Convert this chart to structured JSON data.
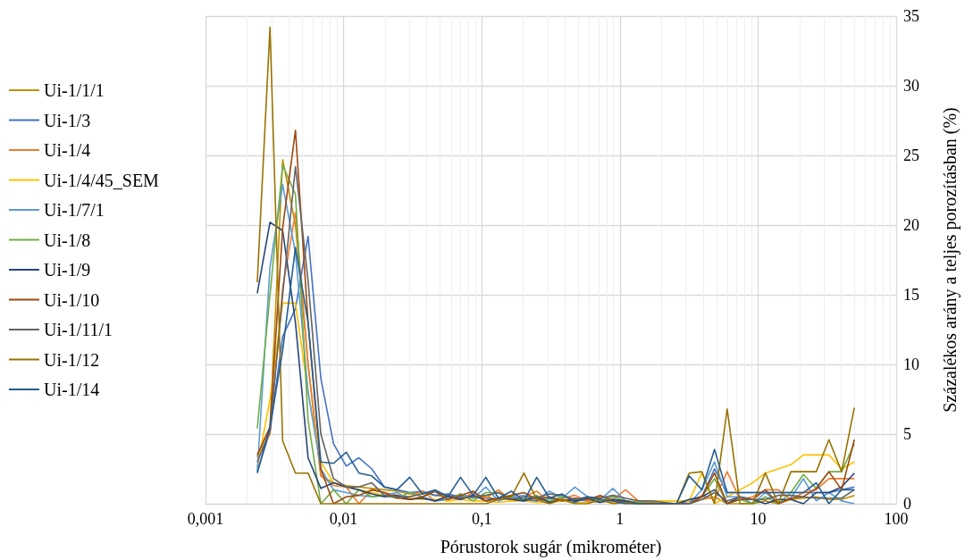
{
  "chart_data": {
    "type": "line",
    "xlabel": "Pórustorok sugár (mikrométer)",
    "ylabel": "Százalékos arány a teljes porozításban (%)",
    "log": "x",
    "grid": true,
    "legend": "left",
    "marker": "none",
    "line_style": "solid",
    "xlim": [
      0.001,
      100
    ],
    "xticks": [
      {
        "value": 0.001,
        "label": "0,001"
      },
      {
        "value": 0.01,
        "label": "0,01"
      },
      {
        "value": 0.1,
        "label": "0,1"
      },
      1,
      10,
      100
    ],
    "ylim": [
      0,
      35
    ],
    "yticks": [
      0,
      5,
      10,
      15,
      20,
      25,
      30,
      35
    ],
    "x": [
      0.00237,
      0.00293,
      0.00362,
      0.00448,
      0.00553,
      0.00684,
      0.00845,
      0.01045,
      0.0129,
      0.016,
      0.0197,
      0.0243,
      0.0301,
      0.0372,
      0.0459,
      0.0568,
      0.0702,
      0.0867,
      0.107,
      0.132,
      0.164,
      0.202,
      0.25,
      0.309,
      0.382,
      0.472,
      0.583,
      0.721,
      0.891,
      1.1,
      1.36,
      1.68,
      2.08,
      2.57,
      3.17,
      3.92,
      4.84,
      5.98,
      7.4,
      9.14,
      11.3,
      14,
      17.3,
      21.3,
      26.4,
      32.6,
      40.3,
      49.8
    ],
    "series": [
      {
        "name": "Ui-1/1/1",
        "color": "#bf9000",
        "values": [
          3.4,
          5.5,
          24.7,
          20,
          10,
          2,
          1.5,
          1.3,
          1.2,
          1.1,
          1.0,
          0.9,
          0.7,
          0.8,
          0.6,
          0.5,
          0.6,
          0.4,
          0.5,
          0.3,
          0.4,
          0.3,
          0.2,
          0.4,
          0.3,
          0.2,
          0.3,
          0.2,
          0.1,
          0.2,
          0.1,
          0.1,
          0,
          0,
          0,
          0.3,
          0.5,
          0,
          0,
          0,
          0.2,
          0,
          0.3,
          0.4,
          0.5,
          0.3,
          0.3,
          0.6
        ]
      },
      {
        "name": "Ui-1/3",
        "color": "#4472c4",
        "values": [
          2.3,
          5.2,
          12,
          14,
          19.2,
          9,
          4.3,
          2.7,
          3.3,
          2.5,
          1.2,
          1.0,
          0.8,
          0.9,
          0.6,
          0.7,
          0.5,
          0.6,
          0.4,
          0.3,
          0.5,
          0.3,
          0.2,
          0.4,
          0.2,
          0.3,
          0.2,
          0.1,
          0.3,
          0.1,
          0,
          0,
          0,
          0,
          0.2,
          0.5,
          2.5,
          0.8,
          0.8,
          0.8,
          0.8,
          0.8,
          0.8,
          0.8,
          0.8,
          0.8,
          1.0,
          1.2
        ]
      },
      {
        "name": "Ui-1/4",
        "color": "#ed7d31",
        "values": [
          3.3,
          5,
          15.5,
          20.9,
          10,
          2,
          1.3,
          1.2,
          0,
          1.0,
          0.8,
          0.6,
          0.5,
          0.9,
          0.2,
          0.6,
          0.3,
          0.8,
          0.4,
          1.0,
          0.2,
          0.5,
          0.9,
          0.1,
          0.4,
          0.6,
          0.2,
          0.5,
          0.3,
          1.0,
          0.2,
          0,
          0,
          0,
          0,
          0.6,
          0.3,
          2.3,
          0.3,
          0.5,
          1.0,
          1.0,
          0.3,
          0.8,
          1.0,
          1.8,
          1.8,
          1.8
        ]
      },
      {
        "name": "Ui-1/4/45_SEM",
        "color": "#ffc000",
        "values": [
          2.6,
          7.5,
          14.4,
          14.4,
          8,
          3,
          1.5,
          1.2,
          1.0,
          0.8,
          0.6,
          0.5,
          0.4,
          0.3,
          0.3,
          0.2,
          0.3,
          0.2,
          0.2,
          0.1,
          0.2,
          0.2,
          0.1,
          0.1,
          0.2,
          0.1,
          0.1,
          0.2,
          0.1,
          0.1,
          0.2,
          0.2,
          0.2,
          0.2,
          0.2,
          2.2,
          0,
          0.5,
          1.0,
          1.5,
          2.2,
          2.5,
          2.8,
          3.5,
          3.5,
          3.5,
          2.5,
          3.0
        ]
      },
      {
        "name": "Ui-1/7/1",
        "color": "#5b9bd5",
        "values": [
          2.3,
          17,
          22.9,
          18,
          8,
          2.5,
          1.0,
          0.8,
          0.6,
          0.5,
          0.6,
          0.8,
          0.3,
          0.5,
          0.2,
          0.3,
          0.7,
          0.4,
          1.2,
          0.2,
          0.5,
          0.6,
          0.3,
          0.9,
          0.4,
          1.2,
          0.5,
          0.3,
          1.1,
          0.2,
          0,
          0,
          0,
          0,
          0,
          1.0,
          3.0,
          0.5,
          0.5,
          0,
          0.8,
          0,
          0.4,
          1.8,
          0.2,
          0.8,
          0.2,
          0
        ]
      },
      {
        "name": "Ui-1/8",
        "color": "#70ad47",
        "values": [
          5.4,
          15,
          24.3,
          22.2,
          6,
          0,
          1.0,
          0,
          1.0,
          0.5,
          0.6,
          0.4,
          0.8,
          0.5,
          0.9,
          0.3,
          0.7,
          0.2,
          0.8,
          0.8,
          0.4,
          0.3,
          0.6,
          0.2,
          0.5,
          0.3,
          0.4,
          0.2,
          0.5,
          0.2,
          0.1,
          0,
          0,
          0,
          0,
          0.5,
          1.8,
          0,
          0.3,
          0,
          0.5,
          0,
          0.8,
          2.1,
          1.1,
          2.3,
          2.3,
          4.3
        ]
      },
      {
        "name": "Ui-1/9",
        "color": "#264478",
        "values": [
          15.1,
          20.2,
          19.6,
          13,
          3.3,
          1.1,
          1.5,
          1.2,
          1.0,
          0.7,
          0.5,
          0.6,
          0.3,
          0.4,
          0.2,
          0.5,
          0.3,
          0.6,
          0.2,
          0.4,
          0.3,
          0.2,
          0.5,
          0.1,
          0.3,
          0.2,
          0.4,
          0.1,
          0.3,
          0.2,
          0,
          0,
          0,
          0,
          0.3,
          0.5,
          1.0,
          0,
          0.5,
          0.3,
          0,
          0.3,
          0.3,
          0,
          0.8,
          0.8,
          1.2,
          2.2
        ]
      },
      {
        "name": "Ui-1/10",
        "color": "#9e480e",
        "values": [
          3.5,
          5.5,
          19.8,
          26.8,
          13,
          2.5,
          0,
          0.5,
          0.6,
          1.0,
          0.8,
          0.4,
          0.3,
          0.5,
          0.9,
          0.3,
          0.6,
          0.9,
          0.2,
          0.4,
          0.6,
          0.8,
          0.3,
          0.5,
          0.2,
          0.4,
          0.3,
          0.6,
          0.2,
          0.1,
          0,
          0,
          0,
          0,
          0,
          0.5,
          2.2,
          0,
          0.3,
          0.3,
          1.0,
          0,
          0.4,
          0.5,
          1.1,
          2.3,
          1.0,
          4.6
        ]
      },
      {
        "name": "Ui-1/11/1",
        "color": "#636363",
        "values": [
          3.0,
          5.2,
          15,
          24.2,
          16,
          5,
          1.8,
          1.2,
          1.2,
          1.5,
          0.6,
          0.5,
          0.5,
          0.7,
          0.9,
          0.6,
          0.4,
          0.5,
          0.6,
          0.8,
          0.3,
          0.5,
          0.4,
          0.7,
          0.6,
          0.3,
          0.5,
          0.4,
          0.6,
          0.4,
          0.2,
          0.2,
          0.1,
          0,
          0,
          0.3,
          0.8,
          0.2,
          0.5,
          0.3,
          0.3,
          0.6,
          0.6,
          0.5,
          0.4,
          0.4,
          0.4,
          1.0
        ]
      },
      {
        "name": "Ui-1/12",
        "color": "#997300",
        "values": [
          15.9,
          34.2,
          4.5,
          2.2,
          2.2,
          0,
          0,
          0,
          0,
          0,
          0,
          0,
          0,
          0,
          0,
          0,
          0,
          0,
          0,
          0.3,
          0.5,
          2.2,
          0.3,
          0,
          0.3,
          0,
          0,
          0.3,
          0,
          0.1,
          0,
          0,
          0,
          0,
          2.2,
          2.3,
          0,
          6.8,
          0,
          0,
          2.2,
          0,
          2.3,
          2.3,
          2.3,
          4.6,
          2.3,
          6.9
        ]
      },
      {
        "name": "Ui-1/14",
        "color": "#255e91",
        "values": [
          2.2,
          5.5,
          11,
          18.4,
          13,
          3,
          2.9,
          3.7,
          2.2,
          2.0,
          1.2,
          1.0,
          1.9,
          0.7,
          1.0,
          0.5,
          1.9,
          0.6,
          1.9,
          0.4,
          0.9,
          0.2,
          1.9,
          0.4,
          0.7,
          0.1,
          0.5,
          0.3,
          0.2,
          0,
          0,
          0,
          0,
          0,
          2.0,
          1.0,
          3.9,
          0.8,
          0.8,
          0.8,
          0.8,
          0.8,
          0.8,
          0.8,
          1.5,
          0,
          1.0,
          1.0
        ]
      }
    ]
  }
}
